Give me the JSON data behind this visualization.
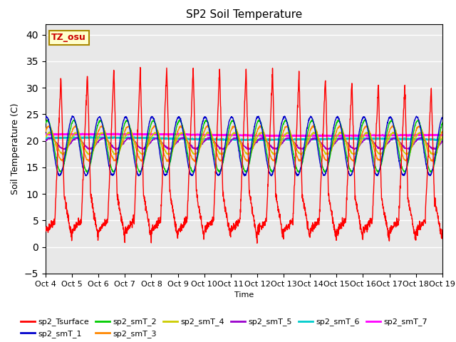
{
  "title": "SP2 Soil Temperature",
  "xlabel": "Time",
  "ylabel": "Soil Temperature (C)",
  "ylim": [
    -5,
    42
  ],
  "yticks": [
    -5,
    0,
    5,
    10,
    15,
    20,
    25,
    30,
    35,
    40
  ],
  "n_days": 15,
  "xtick_labels": [
    "Oct 4",
    "Oct 5",
    "Oct 6",
    "Oct 7",
    "Oct 8",
    "Oct 9",
    "Oct 10",
    "Oct 11",
    "Oct 12",
    "Oct 13",
    "Oct 14",
    "Oct 15",
    "Oct 16",
    "Oct 17",
    "Oct 18",
    "Oct 19"
  ],
  "annotation_text": "TZ_osu",
  "annotation_color": "#cc0000",
  "annotation_bg": "#ffffcc",
  "annotation_border": "#aa8800",
  "series_colors": {
    "sp2_Tsurface": "#ff0000",
    "sp2_smT_1": "#0000cc",
    "sp2_smT_2": "#00cc00",
    "sp2_smT_3": "#ff8800",
    "sp2_smT_4": "#cccc00",
    "sp2_smT_5": "#9900cc",
    "sp2_smT_6": "#00cccc",
    "sp2_smT_7": "#ff00ff"
  },
  "bg_color": "#e8e8e8",
  "grid_color": "#ffffff"
}
